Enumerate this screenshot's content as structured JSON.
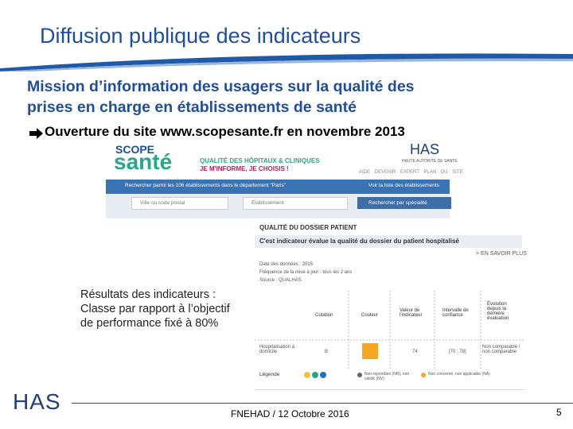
{
  "slide": {
    "title": "Diffusion publique des indicateurs",
    "subtitle_lines": [
      "Mission d’information des usagers sur la qualité des",
      "prises en charge en établissements de santé"
    ],
    "bullet": "Ouverture du site www.scopesante.fr en novembre 2013",
    "site": {
      "logo_top": "SCOPE",
      "logo_bottom": "santé",
      "tagline_1": "QUALITÉ DES HÔPITAUX & CLINIQUES",
      "tagline_2": "JE M'INFORME, JE CHOISIS !",
      "has_logo": "HAS",
      "has_sub": "HAUTE AUTORITÉ DE SANTÉ",
      "nav": [
        "AIDE",
        "DEVENIR EXPERT",
        "PLAN DU SITE"
      ],
      "search_label": "Rechercher parmi les 106 établissements dans le département \"Paris\"",
      "list_link": "Voir la liste des établissements",
      "inputs": [
        "Ville ou code postal",
        "Établissement"
      ],
      "specialty_button": "Rechercher par spécialité"
    },
    "indicator": {
      "title": "QUALITÉ DU DOSSIER PATIENT",
      "banner": "C'est indicateur évalue la qualité du dossier du patient hospitalisé",
      "more": "> EN SAVOIR PLUS",
      "notes": [
        "Date des données : 2015",
        "Fréquence de la mise à jour : tous les 2 ans",
        "Source : QUALHAS"
      ],
      "headers": [
        "Cotation",
        "Couleur",
        "Valeur de l'indicateur",
        "Intervalle de confiance",
        "Évolution depuis la dernière évaluation"
      ],
      "row_label": "Hospitalisation à domicile",
      "row_cotation": "B",
      "row_value": "74",
      "row_interval": "[70 ; 78]",
      "row_evolution": "Non comparable / non comparable",
      "legend_label": "Légende",
      "legend_items": [
        "Non répondant (NR), non validé (NV)",
        "Non concerné, non applicable (NA)"
      ]
    },
    "overlay_lines": [
      "Résultats des indicateurs :",
      "Classe par rapport à l’objectif",
      "de performance fixé à 80%"
    ],
    "footer_logo": "HAS",
    "footer_text": "FNEHAD / 12 Octobre 2016",
    "page_number": "5"
  }
}
